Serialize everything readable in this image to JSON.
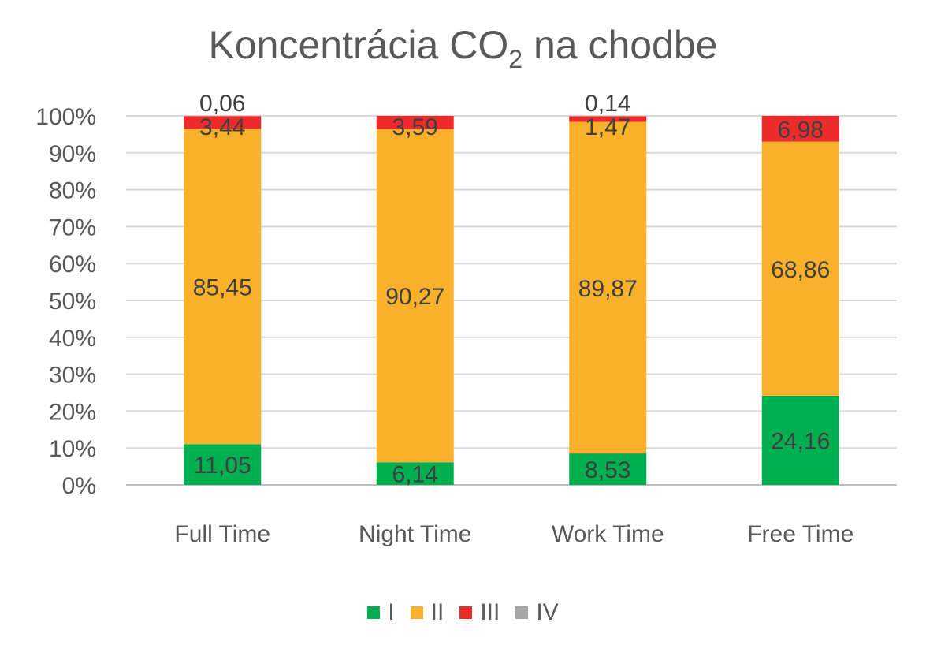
{
  "chart_data": {
    "type": "bar",
    "stacked": true,
    "normalized": true,
    "title": "Koncentrácia CO",
    "title_subscript": "2",
    "title_suffix": " na chodbe",
    "categories": [
      "Full Time",
      "Night Time",
      "Work Time",
      "Free Time"
    ],
    "series": [
      {
        "name": "I",
        "color": "#00b050",
        "values": [
          11.05,
          6.14,
          8.53,
          24.16
        ],
        "labels": [
          "11,05",
          "6,14",
          "8,53",
          "24,16"
        ]
      },
      {
        "name": "II",
        "color": "#f9b02b",
        "values": [
          85.45,
          90.27,
          89.87,
          68.86
        ],
        "labels": [
          "85,45",
          "90,27",
          "89,87",
          "68,86"
        ]
      },
      {
        "name": "III",
        "color": "#ee2b2b",
        "values": [
          3.44,
          3.59,
          1.47,
          6.98
        ],
        "labels": [
          "3,44",
          "3,59",
          "1,47",
          "6,98"
        ]
      },
      {
        "name": "IV",
        "color": "#a6a6a6",
        "values": [
          0.06,
          0,
          0.14,
          0
        ],
        "labels": [
          "0,06",
          "",
          "0,14",
          ""
        ]
      }
    ],
    "yticks": [
      "0%",
      "10%",
      "20%",
      "30%",
      "40%",
      "50%",
      "60%",
      "70%",
      "80%",
      "90%",
      "100%"
    ],
    "ylim": [
      0,
      100
    ],
    "grid": true,
    "legend_position": "bottom"
  }
}
